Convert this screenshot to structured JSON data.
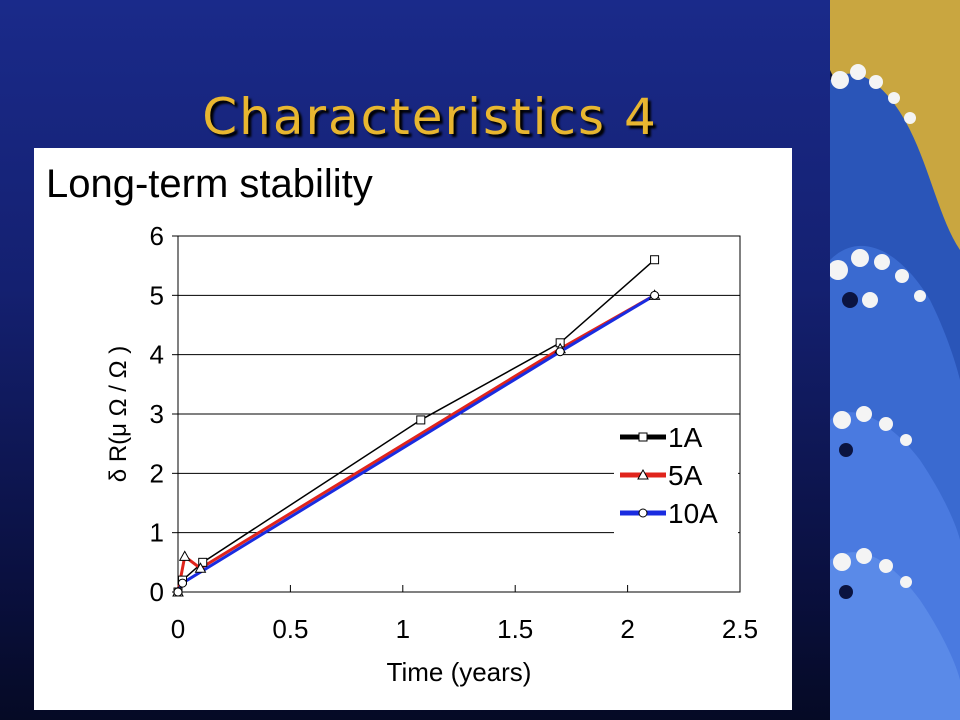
{
  "slide": {
    "title": "Characteristics 4"
  },
  "panel": {
    "title": "Long-term stability"
  },
  "colors": {
    "background": "#142070",
    "title": "#e8b630",
    "wave_blue": "#3a6ad0",
    "wave_gold": "#c9a640"
  },
  "chart_data": {
    "type": "line",
    "title": "Long-term stability",
    "xlabel": "Time (years)",
    "ylabel": "δ R(μ Ω / Ω )",
    "xlim": [
      0,
      2.5
    ],
    "ylim": [
      0,
      6
    ],
    "xticks": [
      "0",
      "0.5",
      "1",
      "1.5",
      "2",
      "2.5"
    ],
    "yticks": [
      "0",
      "1",
      "2",
      "3",
      "4",
      "5",
      "6"
    ],
    "grid": "horizontal",
    "legend": "right",
    "series": [
      {
        "name": "1A",
        "color": "#000000",
        "marker": "square",
        "x": [
          0,
          0.02,
          0.11,
          1.08,
          1.7,
          2.12
        ],
        "y": [
          0,
          0.2,
          0.5,
          2.9,
          4.2,
          5.6
        ]
      },
      {
        "name": "5A",
        "color": "#e0241c",
        "marker": "triangle",
        "x": [
          0,
          0.03,
          0.1,
          1.7,
          2.12
        ],
        "y": [
          0,
          0.6,
          0.4,
          4.1,
          5.0
        ]
      },
      {
        "name": "10A",
        "color": "#1a2ce0",
        "marker": "circle",
        "x": [
          0,
          0.02,
          1.7,
          2.12
        ],
        "y": [
          0,
          0.15,
          4.05,
          5.0
        ]
      }
    ]
  }
}
